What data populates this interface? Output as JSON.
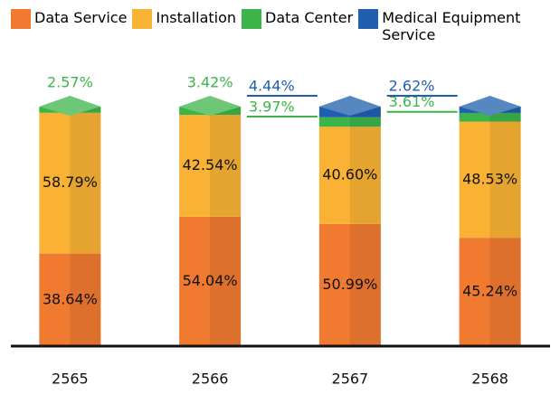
{
  "chart_data": {
    "type": "bar",
    "stacked": true,
    "categories": [
      "2565",
      "2566",
      "2567",
      "2568"
    ],
    "series": [
      {
        "name": "Data Service",
        "color": "#f07a30",
        "values": [
          38.64,
          54.04,
          50.99,
          45.24
        ],
        "value_labels": [
          "38.64%",
          "54.04%",
          "50.99%",
          "45.24%"
        ]
      },
      {
        "name": "Installation",
        "color": "#f9b233",
        "values": [
          58.79,
          42.54,
          40.6,
          48.53
        ],
        "value_labels": [
          "58.79%",
          "42.54%",
          "40.60%",
          "48.53%"
        ]
      },
      {
        "name": "Data Center",
        "color": "#3cb44a",
        "values": [
          2.57,
          3.42,
          3.97,
          3.61
        ],
        "value_labels": [
          "2.57%",
          "3.42%",
          "3.97%",
          "3.61%"
        ]
      },
      {
        "name": "Medical Equipment Service",
        "color": "#1f5fad",
        "values": [
          null,
          null,
          4.44,
          2.62
        ],
        "value_labels": [
          null,
          null,
          "4.44%",
          "2.62%"
        ]
      }
    ],
    "ylim": [
      0,
      100
    ]
  }
}
